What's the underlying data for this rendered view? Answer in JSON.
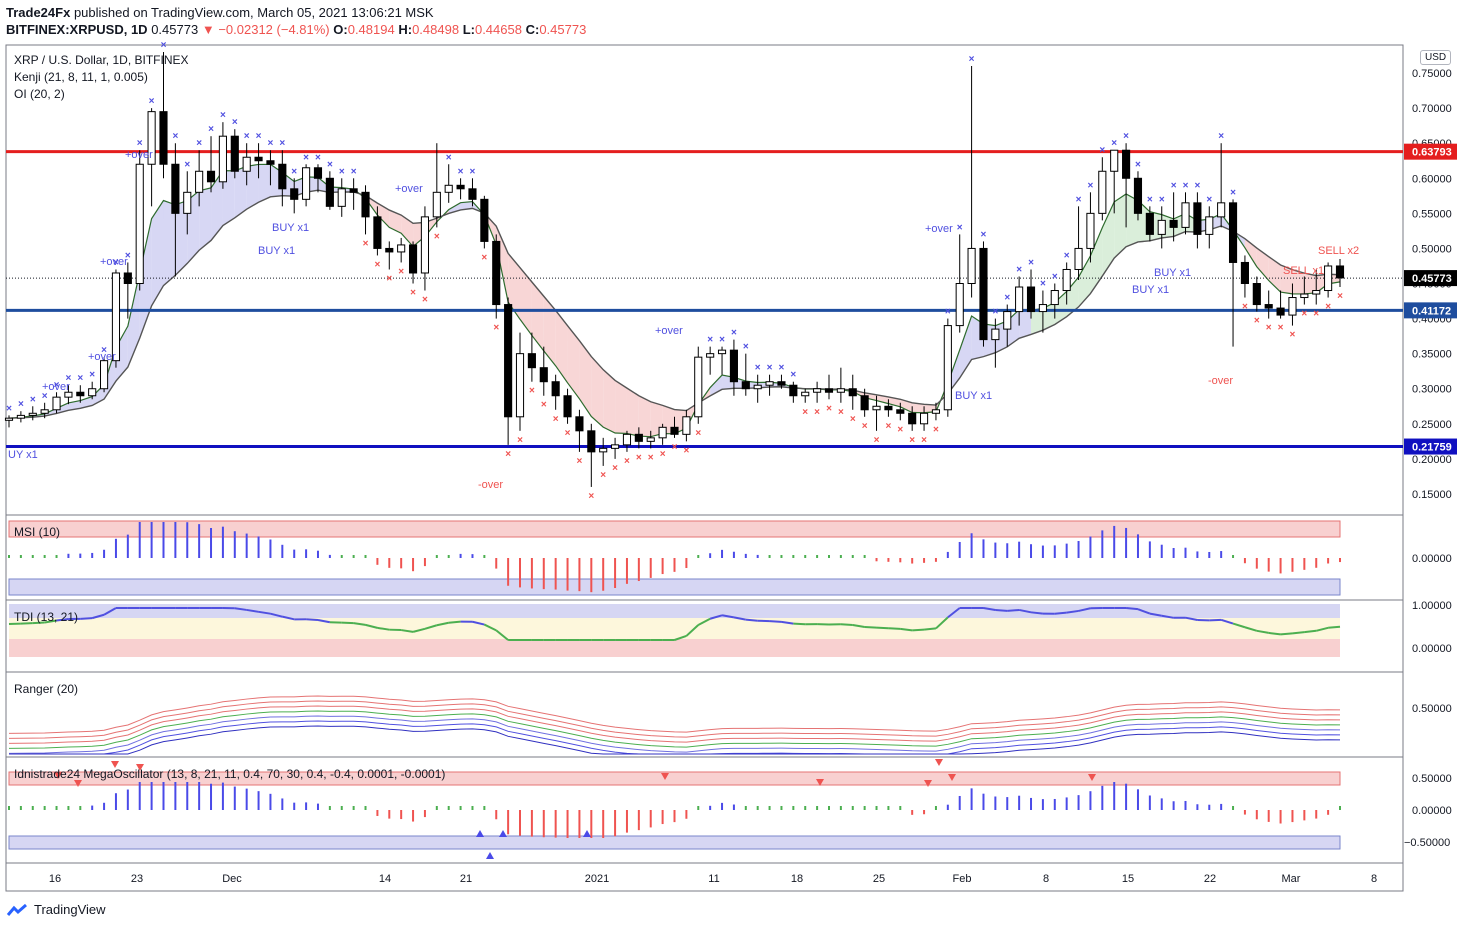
{
  "header": {
    "publisher": "Trade24Fx",
    "published_text": "published on TradingView.com, March 05, 2021 13:06:21 MSK",
    "symbol": "BITFINEX:XRPUSD, 1D",
    "last": "0.45773",
    "change": "−0.02312 (−4.81%)",
    "o_label": "O:",
    "o_val": "0.48194",
    "h_label": "H:",
    "h_val": "0.48498",
    "l_label": "L:",
    "l_val": "0.44658",
    "c_label": "C:",
    "c_val": "0.45773"
  },
  "legend": {
    "title": "XRP / U.S. Dollar, 1D, BITFINEX",
    "kenji": "Kenji (21, 8, 11, 1, 0.005)",
    "oi": "OI (20, 2)",
    "msi": "MSI (10)",
    "tdi": "TDI (13, 21)",
    "ranger": "Ranger (20)",
    "mega": "Idnistrade24 MegaOscillator (13, 8, 21, 11, 0.4, 70, 30, 0.4, -0.4, 0.0001, -0.0001)"
  },
  "currency_badge": "USD",
  "footer": {
    "brand": "TradingView"
  },
  "colors": {
    "up": "#ffffff",
    "down": "#000000",
    "resistance": "#e41e1e",
    "support_mid": "#1e4d9e",
    "support_low": "#1010c0",
    "buy_marker": "#5050e0",
    "sell_marker": "#ef5350",
    "hist_pos": "#4a4ae8",
    "hist_neg": "#ef5350",
    "hist_neutral": "#4caf50"
  },
  "chart_data": [
    {
      "type": "candlestick",
      "title": "XRP / U.S. Dollar, 1D, BITFINEX",
      "x_ticks": [
        "16",
        "23",
        "Dec",
        "14",
        "21",
        "2021",
        "11",
        "18",
        "25",
        "Feb",
        "8",
        "15",
        "22",
        "Mar",
        "8"
      ],
      "y_ticks": [
        "0.15000",
        "0.20000",
        "0.25000",
        "0.30000",
        "0.35000",
        "0.40000",
        "0.45000",
        "0.50000",
        "0.55000",
        "0.60000",
        "0.65000",
        "0.70000",
        "0.75000"
      ],
      "ylim": [
        0.12,
        0.79
      ],
      "horizontal_levels": [
        {
          "value": 0.63793,
          "label": "0.63793",
          "color": "#e41e1e"
        },
        {
          "value": 0.41172,
          "label": "0.41172",
          "color": "#1e4d9e"
        },
        {
          "value": 0.21759,
          "label": "0.21759",
          "color": "#1010c0"
        }
      ],
      "last_price": {
        "value": 0.45773,
        "label": "0.45773"
      },
      "annotations": [
        "+over",
        "-over",
        "BUY x1",
        "SELL x1",
        "SELL x2",
        "UY x1"
      ],
      "ohlc": [
        [
          0.255,
          0.262,
          0.245,
          0.258
        ],
        [
          0.258,
          0.268,
          0.252,
          0.262
        ],
        [
          0.262,
          0.275,
          0.255,
          0.265
        ],
        [
          0.265,
          0.28,
          0.258,
          0.27
        ],
        [
          0.27,
          0.295,
          0.265,
          0.288
        ],
        [
          0.288,
          0.305,
          0.278,
          0.295
        ],
        [
          0.295,
          0.305,
          0.28,
          0.29
        ],
        [
          0.29,
          0.31,
          0.285,
          0.3
        ],
        [
          0.3,
          0.345,
          0.295,
          0.34
        ],
        [
          0.34,
          0.47,
          0.33,
          0.465
        ],
        [
          0.465,
          0.48,
          0.4,
          0.45
        ],
        [
          0.45,
          0.64,
          0.44,
          0.62
        ],
        [
          0.62,
          0.7,
          0.56,
          0.695
        ],
        [
          0.695,
          0.78,
          0.6,
          0.62
        ],
        [
          0.62,
          0.65,
          0.46,
          0.55
        ],
        [
          0.55,
          0.61,
          0.52,
          0.58
        ],
        [
          0.58,
          0.64,
          0.56,
          0.61
        ],
        [
          0.61,
          0.66,
          0.58,
          0.595
        ],
        [
          0.595,
          0.68,
          0.585,
          0.66
        ],
        [
          0.66,
          0.67,
          0.6,
          0.61
        ],
        [
          0.61,
          0.65,
          0.59,
          0.63
        ],
        [
          0.63,
          0.65,
          0.6,
          0.625
        ],
        [
          0.625,
          0.64,
          0.59,
          0.62
        ],
        [
          0.62,
          0.64,
          0.56,
          0.585
        ],
        [
          0.585,
          0.6,
          0.55,
          0.57
        ],
        [
          0.57,
          0.62,
          0.56,
          0.615
        ],
        [
          0.615,
          0.62,
          0.58,
          0.6
        ],
        [
          0.6,
          0.61,
          0.555,
          0.56
        ],
        [
          0.56,
          0.6,
          0.545,
          0.585
        ],
        [
          0.585,
          0.6,
          0.555,
          0.58
        ],
        [
          0.58,
          0.59,
          0.52,
          0.545
        ],
        [
          0.545,
          0.56,
          0.49,
          0.5
        ],
        [
          0.5,
          0.51,
          0.47,
          0.495
        ],
        [
          0.495,
          0.515,
          0.48,
          0.505
        ],
        [
          0.505,
          0.51,
          0.45,
          0.465
        ],
        [
          0.465,
          0.56,
          0.44,
          0.545
        ],
        [
          0.545,
          0.65,
          0.53,
          0.58
        ],
        [
          0.58,
          0.62,
          0.565,
          0.59
        ],
        [
          0.59,
          0.6,
          0.57,
          0.585
        ],
        [
          0.585,
          0.6,
          0.56,
          0.57
        ],
        [
          0.57,
          0.575,
          0.5,
          0.51
        ],
        [
          0.51,
          0.52,
          0.4,
          0.42
        ],
        [
          0.42,
          0.43,
          0.22,
          0.26
        ],
        [
          0.26,
          0.38,
          0.24,
          0.35
        ],
        [
          0.35,
          0.38,
          0.31,
          0.33
        ],
        [
          0.33,
          0.36,
          0.29,
          0.31
        ],
        [
          0.31,
          0.32,
          0.27,
          0.29
        ],
        [
          0.29,
          0.3,
          0.25,
          0.26
        ],
        [
          0.26,
          0.27,
          0.21,
          0.24
        ],
        [
          0.24,
          0.25,
          0.16,
          0.21
        ],
        [
          0.21,
          0.23,
          0.19,
          0.215
        ],
        [
          0.215,
          0.23,
          0.2,
          0.22
        ],
        [
          0.22,
          0.24,
          0.21,
          0.235
        ],
        [
          0.235,
          0.245,
          0.215,
          0.225
        ],
        [
          0.225,
          0.24,
          0.215,
          0.23
        ],
        [
          0.23,
          0.25,
          0.22,
          0.245
        ],
        [
          0.245,
          0.26,
          0.23,
          0.235
        ],
        [
          0.235,
          0.27,
          0.225,
          0.26
        ],
        [
          0.26,
          0.36,
          0.25,
          0.345
        ],
        [
          0.345,
          0.36,
          0.32,
          0.35
        ],
        [
          0.35,
          0.36,
          0.32,
          0.355
        ],
        [
          0.355,
          0.37,
          0.29,
          0.31
        ],
        [
          0.31,
          0.35,
          0.29,
          0.3
        ],
        [
          0.3,
          0.32,
          0.28,
          0.305
        ],
        [
          0.305,
          0.32,
          0.29,
          0.31
        ],
        [
          0.31,
          0.32,
          0.3,
          0.305
        ],
        [
          0.305,
          0.31,
          0.28,
          0.29
        ],
        [
          0.29,
          0.3,
          0.28,
          0.295
        ],
        [
          0.295,
          0.31,
          0.28,
          0.3
        ],
        [
          0.3,
          0.32,
          0.285,
          0.295
        ],
        [
          0.295,
          0.33,
          0.28,
          0.3
        ],
        [
          0.3,
          0.32,
          0.27,
          0.29
        ],
        [
          0.29,
          0.3,
          0.26,
          0.27
        ],
        [
          0.27,
          0.29,
          0.24,
          0.275
        ],
        [
          0.275,
          0.285,
          0.26,
          0.27
        ],
        [
          0.27,
          0.28,
          0.255,
          0.265
        ],
        [
          0.265,
          0.275,
          0.24,
          0.25
        ],
        [
          0.25,
          0.275,
          0.24,
          0.265
        ],
        [
          0.265,
          0.28,
          0.255,
          0.27
        ],
        [
          0.27,
          0.4,
          0.26,
          0.39
        ],
        [
          0.39,
          0.52,
          0.38,
          0.45
        ],
        [
          0.45,
          0.76,
          0.43,
          0.5
        ],
        [
          0.5,
          0.51,
          0.36,
          0.37
        ],
        [
          0.37,
          0.4,
          0.33,
          0.385
        ],
        [
          0.385,
          0.42,
          0.36,
          0.41
        ],
        [
          0.41,
          0.46,
          0.39,
          0.445
        ],
        [
          0.445,
          0.47,
          0.4,
          0.41
        ],
        [
          0.41,
          0.44,
          0.38,
          0.42
        ],
        [
          0.42,
          0.45,
          0.4,
          0.44
        ],
        [
          0.44,
          0.48,
          0.42,
          0.47
        ],
        [
          0.47,
          0.56,
          0.455,
          0.5
        ],
        [
          0.5,
          0.58,
          0.48,
          0.55
        ],
        [
          0.55,
          0.63,
          0.54,
          0.61
        ],
        [
          0.61,
          0.64,
          0.55,
          0.64
        ],
        [
          0.64,
          0.65,
          0.53,
          0.6
        ],
        [
          0.6,
          0.61,
          0.54,
          0.55
        ],
        [
          0.55,
          0.56,
          0.51,
          0.52
        ],
        [
          0.52,
          0.56,
          0.5,
          0.54
        ],
        [
          0.54,
          0.58,
          0.51,
          0.53
        ],
        [
          0.53,
          0.58,
          0.52,
          0.565
        ],
        [
          0.565,
          0.58,
          0.5,
          0.52
        ],
        [
          0.52,
          0.56,
          0.5,
          0.545
        ],
        [
          0.545,
          0.65,
          0.53,
          0.565
        ],
        [
          0.565,
          0.57,
          0.36,
          0.48
        ],
        [
          0.48,
          0.49,
          0.43,
          0.45
        ],
        [
          0.45,
          0.46,
          0.41,
          0.42
        ],
        [
          0.42,
          0.44,
          0.4,
          0.415
        ],
        [
          0.415,
          0.44,
          0.4,
          0.405
        ],
        [
          0.405,
          0.45,
          0.39,
          0.43
        ],
        [
          0.43,
          0.46,
          0.42,
          0.435
        ],
        [
          0.435,
          0.47,
          0.42,
          0.44
        ],
        [
          0.44,
          0.48,
          0.43,
          0.475
        ],
        [
          0.475,
          0.485,
          0.445,
          0.458
        ]
      ]
    },
    {
      "type": "bar",
      "title": "MSI (10)",
      "y_ticks": [
        "0.00000"
      ]
    },
    {
      "type": "line",
      "title": "TDI (13, 21)",
      "y_ticks": [
        "1.00000",
        "0.00000"
      ]
    },
    {
      "type": "line",
      "title": "Ranger (20)",
      "y_ticks": [
        "0.50000"
      ]
    },
    {
      "type": "bar",
      "title": "Idnistrade24 MegaOscillator (13, 8, 21, 11, 0.4, 70, 30, 0.4, -0.4, 0.0001, -0.0001)",
      "y_ticks": [
        "0.50000",
        "0.00000",
        "−0.50000"
      ]
    }
  ]
}
